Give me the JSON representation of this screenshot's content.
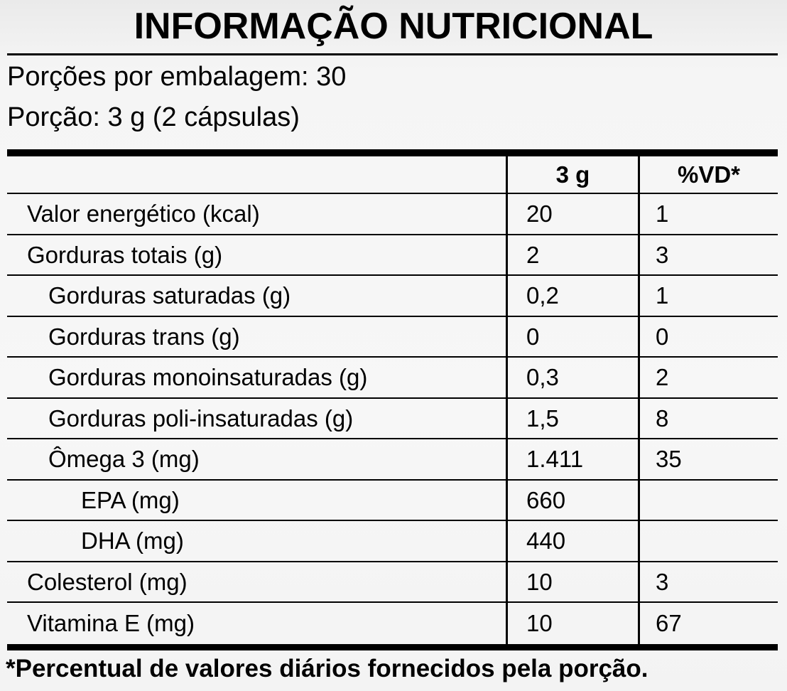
{
  "label": {
    "title": "INFORMAÇÃO NUTRICIONAL",
    "servings_per_package": "Porções por embalagem: 30",
    "serving_size": "Porção: 3 g (2 cápsulas)",
    "footnote": "*Percentual de valores diários fornecidos pela porção."
  },
  "table": {
    "columns": {
      "nutrient": "",
      "amount": "3 g",
      "dv": "%VD*"
    },
    "rows": [
      {
        "name": "Valor energético (kcal)",
        "amount": "20",
        "dv": "1",
        "indent": 0
      },
      {
        "name": "Gorduras totais (g)",
        "amount": "2",
        "dv": "3",
        "indent": 0
      },
      {
        "name": "Gorduras saturadas (g)",
        "amount": "0,2",
        "dv": "1",
        "indent": 1
      },
      {
        "name": "Gorduras trans (g)",
        "amount": "0",
        "dv": "0",
        "indent": 1
      },
      {
        "name": "Gorduras monoinsaturadas (g)",
        "amount": "0,3",
        "dv": "2",
        "indent": 1
      },
      {
        "name": "Gorduras poli-insaturadas (g)",
        "amount": "1,5",
        "dv": "8",
        "indent": 1
      },
      {
        "name": "Ômega 3 (mg)",
        "amount": "1.411",
        "dv": "35",
        "indent": 1
      },
      {
        "name": "EPA (mg)",
        "amount": "660",
        "dv": "",
        "indent": 2
      },
      {
        "name": "DHA (mg)",
        "amount": "440",
        "dv": "",
        "indent": 2
      },
      {
        "name": "Colesterol (mg)",
        "amount": "10",
        "dv": "3",
        "indent": 0
      },
      {
        "name": "Vitamina E (mg)",
        "amount": "10",
        "dv": "67",
        "indent": 0
      }
    ]
  },
  "colors": {
    "text": "#000000",
    "lines": "#000000",
    "background": "#f5f5f5"
  }
}
